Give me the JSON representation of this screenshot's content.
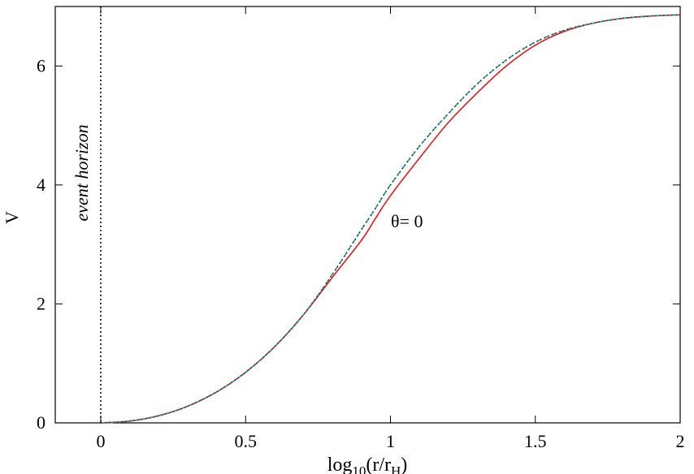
{
  "chart_data": {
    "type": "line",
    "xlabel": [
      "log",
      "10",
      "(r/r",
      "H",
      ")"
    ],
    "ylabel": "V",
    "annotations": [
      "event horizon",
      "θ= 0"
    ],
    "event_horizon_x": 0,
    "xlim": [
      -0.157,
      2
    ],
    "ylim": [
      0,
      7
    ],
    "xticks": [
      0,
      0.5,
      1,
      1.5,
      2
    ],
    "yticks": [
      0,
      2,
      4,
      6
    ],
    "x": [
      0,
      0.1,
      0.2,
      0.3,
      0.4,
      0.5,
      0.6,
      0.7,
      0.8,
      0.9,
      0.95,
      1.0,
      1.1,
      1.2,
      1.3,
      1.4,
      1.5,
      1.6,
      1.7,
      1.8,
      1.9,
      2.0
    ],
    "series": [
      {
        "color": "#e41a1c",
        "dash": "solid",
        "values": [
          0,
          0.03,
          0.12,
          0.28,
          0.52,
          0.85,
          1.28,
          1.82,
          2.45,
          3.07,
          3.45,
          3.82,
          4.45,
          5.05,
          5.55,
          6.0,
          6.35,
          6.58,
          6.72,
          6.8,
          6.84,
          6.86
        ]
      },
      {
        "color": "#22bb22",
        "dash": "dashed",
        "values": [
          0,
          0.03,
          0.12,
          0.28,
          0.52,
          0.85,
          1.28,
          1.82,
          2.5,
          3.25,
          3.62,
          4.0,
          4.65,
          5.2,
          5.7,
          6.1,
          6.4,
          6.6,
          6.72,
          6.8,
          6.84,
          6.86
        ]
      },
      {
        "color": "#1f3fbf",
        "dash": "dotted",
        "values": [
          0,
          0.03,
          0.12,
          0.28,
          0.52,
          0.85,
          1.28,
          1.82,
          2.5,
          3.25,
          3.62,
          4.0,
          4.65,
          5.2,
          5.7,
          6.1,
          6.4,
          6.6,
          6.72,
          6.8,
          6.84,
          6.86
        ]
      }
    ]
  }
}
